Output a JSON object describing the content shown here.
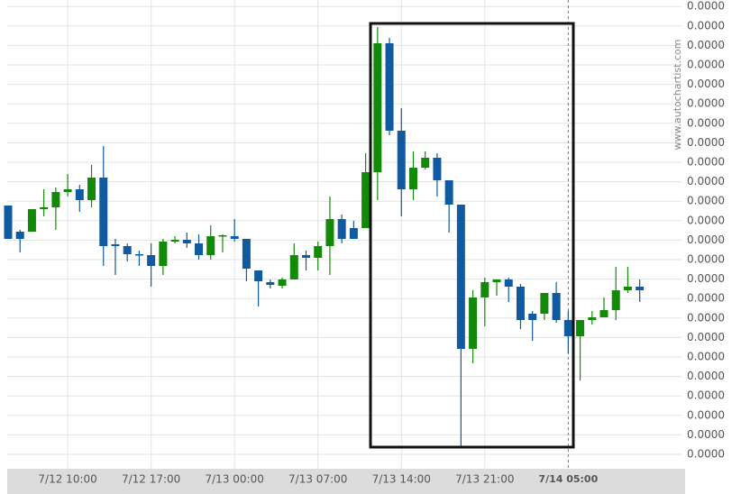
{
  "chart_data": {
    "type": "candlestick",
    "watermark": "www.autochartist.com",
    "categories": [
      null,
      null,
      null,
      null,
      null,
      "7/12 10:00",
      null,
      null,
      null,
      null,
      null,
      null,
      "7/12 17:00",
      null,
      null,
      null,
      null,
      null,
      null,
      "7/13 00:00",
      null,
      null,
      null,
      null,
      null,
      null,
      "7/13 07:00",
      null,
      null,
      null,
      null,
      null,
      null,
      "7/13 14:00",
      null,
      null,
      null,
      null,
      null,
      null,
      "7/13 21:00",
      null,
      null,
      null,
      null,
      null,
      null,
      "7/14 05:00",
      null,
      null,
      null,
      null,
      null,
      null
    ],
    "open": [
      2.76e-05,
      2.47e-05,
      2.47e-05,
      2.72e-05,
      2.74e-05,
      2.91e-05,
      2.94e-05,
      2.82e-05,
      3.07e-05,
      2.33e-05,
      2.31e-05,
      2.22e-05,
      2.21e-05,
      2.09e-05,
      2.36e-05,
      2.38e-05,
      2.34e-05,
      2.21e-05,
      2.42e-05,
      2.42e-05,
      2.39e-05,
      2.04e-05,
      1.91e-05,
      1.87e-05,
      1.94e-05,
      2.21e-05,
      2.18e-05,
      2.31e-05,
      2.61e-05,
      2.51e-05,
      2.51e-05,
      3.13e-05,
      4.56e-05,
      3.59e-05,
      2.94e-05,
      3.18e-05,
      3.29e-05,
      3.04e-05,
      2.77e-05,
      1.17e-05,
      1.74e-05,
      1.91e-05,
      1.94e-05,
      1.86e-05,
      1.56e-05,
      1.56e-05,
      1.79e-05,
      1.49e-05,
      1.31e-05,
      1.49e-05,
      1.52e-05,
      1.6e-05,
      1.82e-05,
      1.86e-05
    ],
    "high": [
      2.76e-05,
      2.49e-05,
      2.72e-05,
      2.94e-05,
      2.96e-05,
      3.11e-05,
      2.99e-05,
      3.21e-05,
      3.42e-05,
      2.39e-05,
      2.34e-05,
      2.26e-05,
      2.34e-05,
      2.39e-05,
      2.42e-05,
      2.46e-05,
      2.44e-05,
      2.54e-05,
      2.44e-05,
      2.61e-05,
      2.39e-05,
      2.04e-05,
      1.94e-05,
      1.96e-05,
      2.34e-05,
      2.26e-05,
      2.36e-05,
      2.86e-05,
      2.66e-05,
      2.59e-05,
      3.34e-05,
      4.74e-05,
      4.62e-05,
      3.84e-05,
      3.36e-05,
      3.36e-05,
      3.34e-05,
      3.04e-05,
      2.77e-05,
      1.82e-05,
      1.96e-05,
      1.94e-05,
      1.96e-05,
      1.89e-05,
      1.59e-05,
      1.79e-05,
      1.91e-05,
      1.59e-05,
      1.49e-05,
      1.59e-05,
      1.74e-05,
      2.08e-05,
      2.08e-05,
      1.94e-05
    ],
    "low": [
      2.39e-05,
      2.24e-05,
      2.47e-05,
      2.64e-05,
      2.49e-05,
      2.86e-05,
      2.69e-05,
      2.74e-05,
      2.09e-05,
      1.99e-05,
      2.14e-05,
      2.09e-05,
      1.86e-05,
      1.99e-05,
      2.34e-05,
      2.29e-05,
      2.16e-05,
      2.16e-05,
      2.24e-05,
      2.36e-05,
      1.92e-05,
      1.64e-05,
      1.84e-05,
      1.84e-05,
      1.94e-05,
      2.04e-05,
      2.04e-05,
      1.99e-05,
      2.34e-05,
      2.39e-05,
      2.51e-05,
      2.82e-05,
      3.54e-05,
      2.64e-05,
      2.82e-05,
      3.16e-05,
      2.86e-05,
      2.46e-05,
      9e-07,
      1.01e-05,
      1.42e-05,
      1.76e-05,
      1.69e-05,
      1.39e-05,
      1.26e-05,
      1.49e-05,
      1.46e-05,
      1.12e-05,
      8.2e-06,
      1.44e-05,
      1.52e-05,
      1.49e-05,
      1.79e-05,
      1.69e-05
    ],
    "close": [
      2.39e-05,
      2.39e-05,
      2.72e-05,
      2.74e-05,
      2.91e-05,
      2.94e-05,
      2.82e-05,
      3.07e-05,
      2.31e-05,
      2.31e-05,
      2.22e-05,
      2.21e-05,
      2.09e-05,
      2.36e-05,
      2.38e-05,
      2.34e-05,
      2.21e-05,
      2.42e-05,
      2.43e-05,
      2.39e-05,
      2.06e-05,
      1.92e-05,
      1.88e-05,
      1.94e-05,
      2.21e-05,
      2.18e-05,
      2.31e-05,
      2.61e-05,
      2.39e-05,
      2.39e-05,
      3.13e-05,
      4.56e-05,
      3.59e-05,
      2.94e-05,
      3.18e-05,
      3.29e-05,
      3.04e-05,
      2.77e-05,
      1.17e-05,
      1.74e-05,
      1.91e-05,
      1.94e-05,
      1.86e-05,
      1.49e-05,
      1.49e-05,
      1.79e-05,
      1.49e-05,
      1.31e-05,
      1.49e-05,
      1.52e-05,
      1.6e-05,
      1.82e-05,
      1.86e-05,
      1.82e-05
    ],
    "up_color": "#138a07",
    "down_color": "#0f5aa0",
    "ylim": [
      -1.6e-06,
      5.04e-05
    ],
    "yticks": [
      {
        "value": 0,
        "label": "0.0000"
      },
      {
        "value": 2.16e-06,
        "label": "0.0000"
      },
      {
        "value": 4.32e-06,
        "label": "0.0000"
      },
      {
        "value": 6.48e-06,
        "label": "0.0000"
      },
      {
        "value": 8.64e-06,
        "label": "0.0000"
      },
      {
        "value": 1.08e-05,
        "label": "0.0000"
      },
      {
        "value": 1.296e-05,
        "label": "0.0000"
      },
      {
        "value": 1.512e-05,
        "label": "0.0000"
      },
      {
        "value": 1.728e-05,
        "label": "0.0000"
      },
      {
        "value": 1.944e-05,
        "label": "0.0000"
      },
      {
        "value": 2.16e-05,
        "label": "0.0000"
      },
      {
        "value": 2.376e-05,
        "label": "0.0000"
      },
      {
        "value": 2.592e-05,
        "label": "0.0000"
      },
      {
        "value": 2.808e-05,
        "label": "0.0000"
      },
      {
        "value": 3.024e-05,
        "label": "0.0000"
      },
      {
        "value": 3.24e-05,
        "label": "0.0000"
      },
      {
        "value": 3.456e-05,
        "label": "0.0000"
      },
      {
        "value": 3.672e-05,
        "label": "0.0000"
      },
      {
        "value": 3.888e-05,
        "label": "0.0000"
      },
      {
        "value": 4.104e-05,
        "label": "0.0000"
      },
      {
        "value": 4.32e-05,
        "label": "0.0000"
      },
      {
        "value": 4.536e-05,
        "label": "0.0000"
      },
      {
        "value": 4.752e-05,
        "label": "0.0000"
      },
      {
        "value": 4.968e-05,
        "label": "0.0000"
      }
    ],
    "grid": true
  }
}
